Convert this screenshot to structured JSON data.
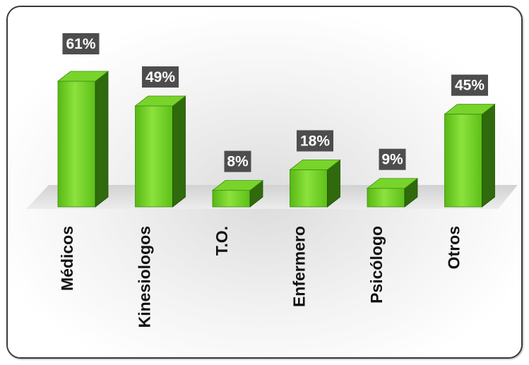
{
  "chart_data": {
    "type": "bar",
    "categories": [
      "Médicos",
      "Kinesiologos",
      "T.O.",
      "Enfermero",
      "Psicólogo",
      "Otros"
    ],
    "values": [
      61,
      49,
      8,
      18,
      9,
      45
    ],
    "value_labels": [
      "61%",
      "49%",
      "8%",
      "18%",
      "9%",
      "45%"
    ],
    "unit": "%",
    "ylim": [
      0,
      61
    ],
    "grid": false,
    "legend": "none",
    "style": "3d-column",
    "colors": {
      "bar_front": "#62c81a",
      "bar_front_light": "#8ce23c",
      "bar_side": "#2f6a0c",
      "bar_top": "#78d42a",
      "label_box": "#4d4d4d",
      "label_text": "#ffffff",
      "floor": "#e4e4e4",
      "axis_text": "#111111"
    }
  }
}
